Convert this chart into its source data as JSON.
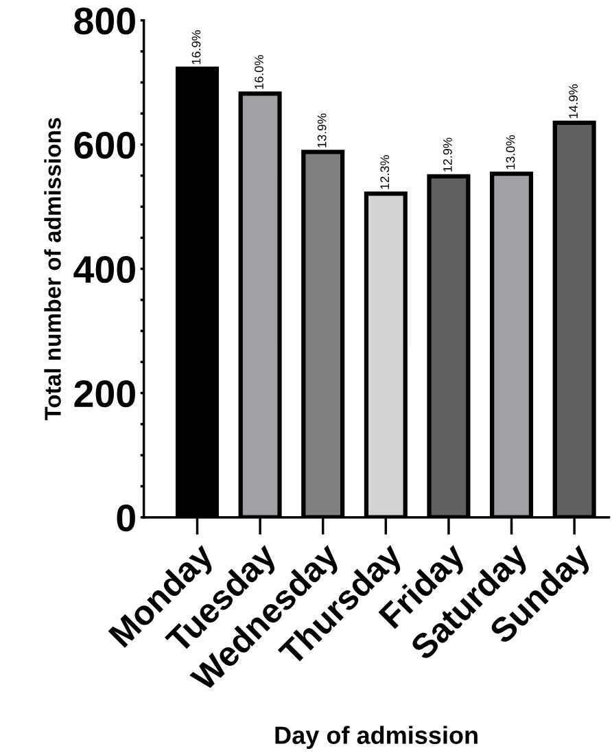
{
  "chart_data": {
    "type": "bar",
    "xlabel": "Day of admission",
    "ylabel": "Total number of admissions",
    "categories": [
      "Monday",
      "Tuesday",
      "Wednesday",
      "Thursday",
      "Friday",
      "Saturday",
      "Sunday"
    ],
    "values": [
      722,
      682,
      588,
      521,
      549,
      553,
      635
    ],
    "colors": [
      "#000000",
      "#a0a0a5",
      "#808080",
      "#d3d3d3",
      "#606060",
      "#a0a0a5",
      "#606060"
    ],
    "annotations": [
      {
        "text": "16.9%",
        "x": "Monday",
        "y": 722
      },
      {
        "text": "16.0%",
        "x": "Tuesday",
        "y": 682
      },
      {
        "text": "13.9%",
        "x": "Wednesday",
        "y": 588
      },
      {
        "text": "12.3%",
        "x": "Thursday",
        "y": 521
      },
      {
        "text": "12.9%",
        "x": "Friday",
        "y": 549
      },
      {
        "text": "13.0%",
        "x": "Saturday",
        "y": 553
      },
      {
        "text": "14.9%",
        "x": "Sunday",
        "y": 635
      }
    ],
    "ylim": [
      0,
      800
    ],
    "yticks": [
      0,
      {
        "value": 50,
        "label": null
      },
      {
        "value": 100,
        "label": null
      },
      {
        "value": 150,
        "label": null
      },
      200,
      {
        "value": 250,
        "label": null
      },
      {
        "value": 300,
        "label": null
      },
      {
        "value": 350,
        "label": null
      },
      400,
      {
        "value": 450,
        "label": null
      },
      {
        "value": 500,
        "label": null
      },
      {
        "value": 550,
        "label": null
      },
      600,
      {
        "value": 650,
        "label": null
      },
      {
        "value": 700,
        "label": null
      },
      {
        "value": 750,
        "label": null
      },
      800
    ],
    "grid": false
  }
}
